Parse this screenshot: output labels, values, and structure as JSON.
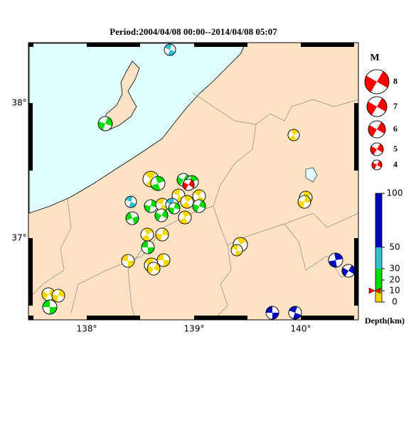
{
  "title": "Period:2004/04/08 00:00--2014/04/08 05:07",
  "map": {
    "x_ticks": [
      "138°",
      "139°",
      "140°"
    ],
    "y_ticks": [
      "38°",
      "37°"
    ]
  },
  "magnitude_legend": {
    "title": "M",
    "labels": [
      "8",
      "7",
      "6",
      "5",
      "4"
    ]
  },
  "depth_legend": {
    "labels": [
      "100",
      "50",
      "30",
      "20",
      "10",
      "0"
    ],
    "title": "Depth(km)"
  }
}
